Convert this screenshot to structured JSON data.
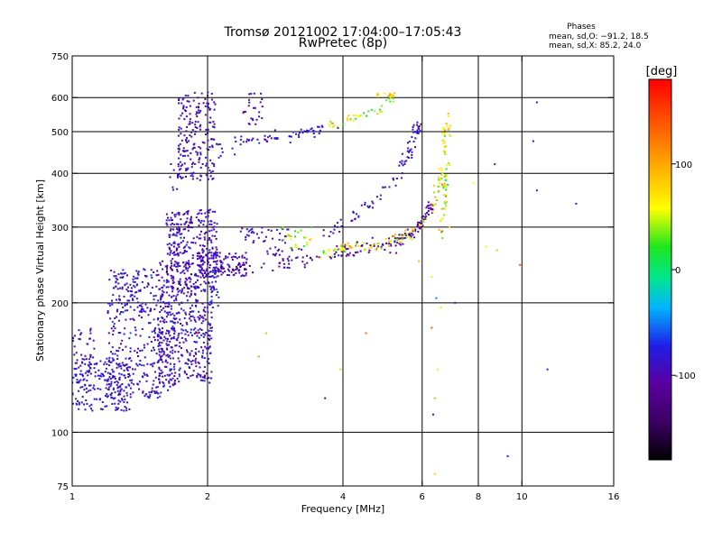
{
  "chart_data": {
    "type": "scatter",
    "title": "Tromsø 20121002 17:04:00–17:05:43",
    "subtitle": "RwPretec (8p)",
    "stats": {
      "heading": "Phases",
      "line1": "mean, sd,O: −91.2, 18.5",
      "line2": "mean, sd,X:  85.2, 24.0"
    },
    "xlabel": "Frequency [MHz]",
    "ylabel": "Stationary phase Virtual Height [km]",
    "x_scale": "log",
    "y_scale": "log",
    "xlim": [
      1,
      16
    ],
    "ylim": [
      75,
      750
    ],
    "x_ticks": [
      1,
      2,
      4,
      6,
      8,
      10,
      16
    ],
    "x_tick_labels": [
      "1",
      "2",
      "4",
      "6",
      "8",
      "10",
      "16"
    ],
    "y_ticks": [
      75,
      100,
      200,
      300,
      400,
      500,
      600,
      750
    ],
    "y_tick_labels": [
      "75",
      "100",
      "200",
      "300",
      "400",
      "500",
      "600",
      "750"
    ],
    "x_gridlines": [
      2,
      4,
      6,
      8,
      10
    ],
    "y_gridlines": [
      100,
      200,
      300,
      400,
      500,
      600
    ],
    "grid": true,
    "colorbar": {
      "label": "[deg]",
      "range": [
        -180,
        180
      ],
      "ticks": [
        100,
        0,
        -100
      ],
      "tick_labels": [
        "100",
        "0",
        "-100"
      ],
      "colormap": [
        "#000000",
        "#5a00a0",
        "#1e1ee6",
        "#00b4ff",
        "#00e68c",
        "#1ee61e",
        "#ffff00",
        "#ff9600",
        "#ff0000"
      ]
    },
    "clusters": [
      {
        "x0": 1.0,
        "x1": 1.35,
        "y0": 112,
        "y1": 150,
        "n": 200,
        "phase": -105,
        "sd": 10
      },
      {
        "x0": 1.0,
        "x1": 1.12,
        "y0": 135,
        "y1": 175,
        "n": 40,
        "phase": -115,
        "sd": 10
      },
      {
        "x0": 1.2,
        "x1": 1.7,
        "y0": 120,
        "y1": 240,
        "n": 380,
        "phase": -110,
        "sd": 16
      },
      {
        "x0": 1.55,
        "x1": 2.05,
        "y0": 130,
        "y1": 220,
        "n": 360,
        "phase": -112,
        "sd": 16
      },
      {
        "x0": 1.62,
        "x1": 2.1,
        "y0": 215,
        "y1": 330,
        "n": 320,
        "phase": -118,
        "sd": 14
      },
      {
        "x0": 1.9,
        "x1": 2.45,
        "y0": 230,
        "y1": 262,
        "n": 130,
        "phase": -118,
        "sd": 10
      },
      {
        "x0": 1.72,
        "x1": 2.08,
        "y0": 385,
        "y1": 620,
        "n": 190,
        "phase": -118,
        "sd": 12
      },
      {
        "x0": 1.65,
        "x1": 1.8,
        "y0": 360,
        "y1": 430,
        "n": 15,
        "phase": -110,
        "sd": 10
      },
      {
        "x0": 2.05,
        "x1": 2.3,
        "y0": 430,
        "y1": 470,
        "n": 10,
        "phase": -110,
        "sd": 10
      },
      {
        "x0": 1.55,
        "x1": 2.0,
        "y0": 236,
        "y1": 250,
        "n": 20,
        "phase": -118,
        "sd": 8
      },
      {
        "x0": 1.25,
        "x1": 1.45,
        "y0": 190,
        "y1": 230,
        "n": 30,
        "phase": -105,
        "sd": 10
      },
      {
        "x0": 2.02,
        "x1": 2.12,
        "y0": 195,
        "y1": 240,
        "n": 20,
        "phase": -85,
        "sd": 12
      },
      {
        "x0": 2.4,
        "x1": 2.65,
        "y0": 520,
        "y1": 620,
        "n": 25,
        "phase": -120,
        "sd": 8
      },
      {
        "x0": 2.3,
        "x1": 3.1,
        "y0": 275,
        "y1": 300,
        "n": 35,
        "phase": -112,
        "sd": 10
      },
      {
        "x0": 2.7,
        "x1": 3.3,
        "y0": 255,
        "y1": 270,
        "n": 18,
        "phase": -110,
        "sd": 10
      },
      {
        "x0": 2.9,
        "x1": 3.4,
        "y0": 268,
        "y1": 300,
        "n": 25,
        "phase": 70,
        "sd": 25
      }
    ],
    "traces": [
      {
        "points": [
          [
            2.05,
            238
          ],
          [
            2.4,
            240
          ],
          [
            2.8,
            242
          ],
          [
            3.2,
            248
          ],
          [
            3.6,
            256
          ],
          [
            4.0,
            263
          ],
          [
            4.5,
            268
          ],
          [
            5.0,
            273
          ],
          [
            5.4,
            280
          ],
          [
            5.7,
            290
          ],
          [
            5.9,
            300
          ],
          [
            6.1,
            315
          ],
          [
            6.3,
            340
          ]
        ],
        "n": 170,
        "spread": 0.018,
        "phase": -130,
        "sd": 12
      },
      {
        "points": [
          [
            3.5,
            262
          ],
          [
            4.0,
            268
          ],
          [
            4.5,
            272
          ],
          [
            5.0,
            276
          ],
          [
            5.4,
            283
          ],
          [
            5.8,
            295
          ],
          [
            6.1,
            310
          ],
          [
            6.4,
            340
          ],
          [
            6.6,
            390
          ],
          [
            6.7,
            450
          ],
          [
            6.75,
            520
          ]
        ],
        "n": 120,
        "spread": 0.016,
        "phase": 95,
        "sd": 25
      },
      {
        "points": [
          [
            2.3,
            478
          ],
          [
            2.6,
            482
          ],
          [
            2.9,
            486
          ],
          [
            3.3,
            494
          ],
          [
            3.6,
            506
          ]
        ],
        "n": 60,
        "spread": 0.015,
        "phase": -105,
        "sd": 12
      },
      {
        "points": [
          [
            3.7,
            518
          ],
          [
            4.0,
            528
          ],
          [
            4.4,
            545
          ],
          [
            4.9,
            565
          ],
          [
            5.2,
            600
          ]
        ],
        "n": 40,
        "spread": 0.015,
        "phase": 75,
        "sd": 30
      },
      {
        "points": [
          [
            4.7,
            605
          ],
          [
            5.0,
            612
          ],
          [
            5.2,
            620
          ]
        ],
        "n": 12,
        "spread": 0.012,
        "phase": 110,
        "sd": 20
      },
      {
        "points": [
          [
            3.6,
            290
          ],
          [
            4.2,
            318
          ],
          [
            4.8,
            352
          ],
          [
            5.3,
            390
          ],
          [
            5.6,
            440
          ],
          [
            5.8,
            500
          ],
          [
            5.9,
            530
          ]
        ],
        "n": 90,
        "spread": 0.02,
        "phase": -110,
        "sd": 14
      },
      {
        "points": [
          [
            6.55,
            280
          ],
          [
            6.7,
            330
          ],
          [
            6.8,
            400
          ],
          [
            6.85,
            470
          ],
          [
            6.9,
            560
          ]
        ],
        "n": 45,
        "spread": 0.014,
        "phase": 90,
        "sd": 35
      }
    ],
    "isolated_points": [
      [
        3.3,
        500,
        -110
      ],
      [
        3.9,
        510,
        -105
      ],
      [
        5.9,
        250,
        120
      ],
      [
        6.3,
        175,
        150
      ],
      [
        6.35,
        110,
        -100
      ],
      [
        6.5,
        140,
        100
      ],
      [
        6.6,
        195,
        80
      ],
      [
        7.8,
        380,
        90
      ],
      [
        8.3,
        270,
        90
      ],
      [
        8.7,
        420,
        -100
      ],
      [
        8.8,
        265,
        120
      ],
      [
        9.3,
        88,
        -90
      ],
      [
        9.9,
        245,
        150
      ],
      [
        10.6,
        475,
        -110
      ],
      [
        10.8,
        365,
        -100
      ],
      [
        10.8,
        585,
        -120
      ],
      [
        11.4,
        140,
        -100
      ],
      [
        13.2,
        340,
        -100
      ],
      [
        7.1,
        200,
        -110
      ],
      [
        6.9,
        300,
        110
      ],
      [
        3.95,
        140,
        110
      ],
      [
        4.5,
        170,
        150
      ],
      [
        2.7,
        170,
        120
      ],
      [
        2.6,
        150,
        60
      ],
      [
        3.65,
        120,
        -130
      ],
      [
        6.4,
        80,
        110
      ],
      [
        6.4,
        120,
        130
      ],
      [
        1.9,
        170,
        160
      ],
      [
        6.45,
        205,
        -60
      ],
      [
        6.3,
        230,
        100
      ]
    ]
  }
}
